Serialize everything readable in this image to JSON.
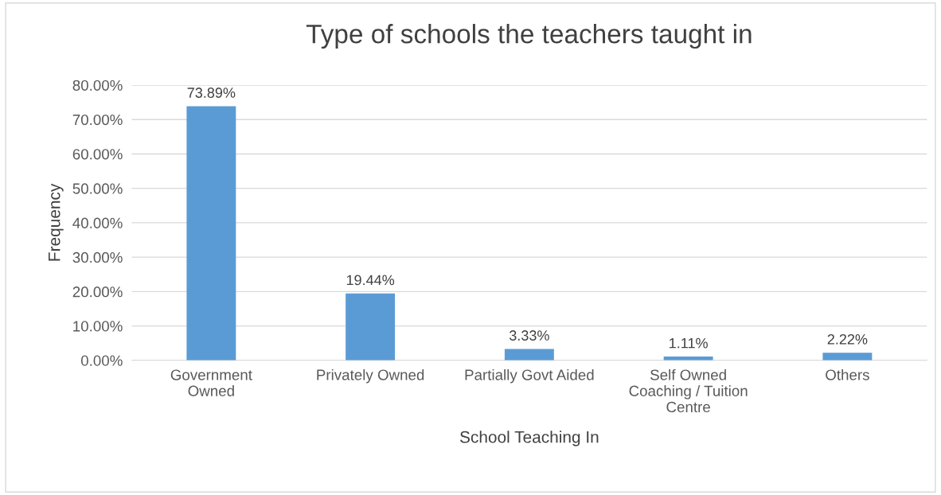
{
  "chart_data": {
    "type": "bar",
    "title": "Type of schools the teachers taught in",
    "xlabel": "School Teaching In",
    "ylabel": "Frequency",
    "categories": [
      "Government\nOwned",
      "Privately Owned",
      "Partially Govt Aided",
      "Self Owned\nCoaching / Tuition\nCentre",
      "Others"
    ],
    "values": [
      73.89,
      19.44,
      3.33,
      1.11,
      2.22
    ],
    "value_labels": [
      "73.89%",
      "19.44%",
      "3.33%",
      "1.11%",
      "2.22%"
    ],
    "color": "#5b9bd5",
    "ylim": [
      0,
      80
    ],
    "yticks": [
      {
        "value": 0,
        "label": "0.00%"
      },
      {
        "value": 10,
        "label": "10.00%"
      },
      {
        "value": 20,
        "label": "20.00%"
      },
      {
        "value": 30,
        "label": "30.00%"
      },
      {
        "value": 40,
        "label": "40.00%"
      },
      {
        "value": 50,
        "label": "50.00%"
      },
      {
        "value": 60,
        "label": "60.00%"
      },
      {
        "value": 70,
        "label": "70.00%"
      },
      {
        "value": 80,
        "label": "80.00%"
      }
    ],
    "grid": "y"
  }
}
